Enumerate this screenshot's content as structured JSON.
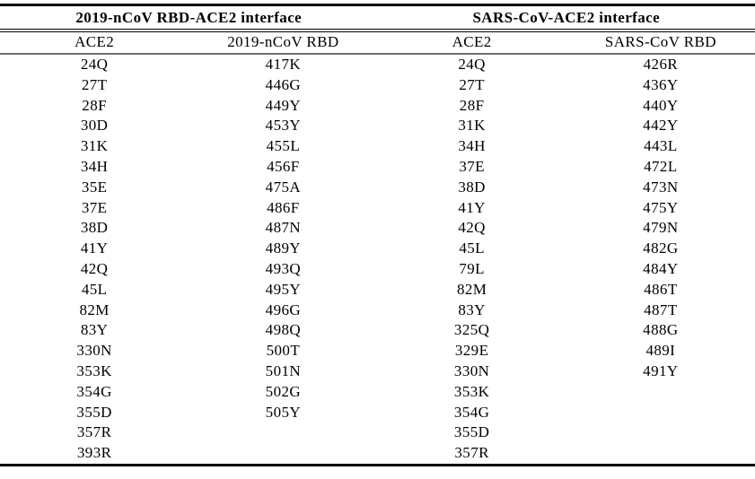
{
  "page": {
    "background_color": "#ffffff",
    "text_color": "#000000",
    "rule_colors": {
      "outer_rules": "#000000",
      "group_header_double_rule": "#000000",
      "sub_header_rule": "#6e6e6e"
    }
  },
  "table": {
    "group_headers": [
      "2019-nCoV RBD-ACE2 interface",
      "SARS-CoV-ACE2 interface"
    ],
    "column_headers": [
      "ACE2",
      "2019-nCoV RBD",
      "ACE2",
      "SARS-CoV RBD"
    ],
    "columns": [
      [
        "24Q",
        "27T",
        "28F",
        "30D",
        "31K",
        "34H",
        "35E",
        "37E",
        "38D",
        "41Y",
        "42Q",
        "45L",
        "82M",
        "83Y",
        "330N",
        "353K",
        "354G",
        "355D",
        "357R",
        "393R"
      ],
      [
        "417K",
        "446G",
        "449Y",
        "453Y",
        "455L",
        "456F",
        "475A",
        "486F",
        "487N",
        "489Y",
        "493Q",
        "495Y",
        "496G",
        "498Q",
        "500T",
        "501N",
        "502G",
        "505Y"
      ],
      [
        "24Q",
        "27T",
        "28F",
        "31K",
        "34H",
        "37E",
        "38D",
        "41Y",
        "42Q",
        "45L",
        "79L",
        "82M",
        "83Y",
        "325Q",
        "329E",
        "330N",
        "353K",
        "354G",
        "355D",
        "357R"
      ],
      [
        "426R",
        "436Y",
        "440Y",
        "442Y",
        "443L",
        "472L",
        "473N",
        "475Y",
        "479N",
        "482G",
        "484Y",
        "486T",
        "487T",
        "488G",
        "489I",
        "491Y"
      ]
    ]
  }
}
